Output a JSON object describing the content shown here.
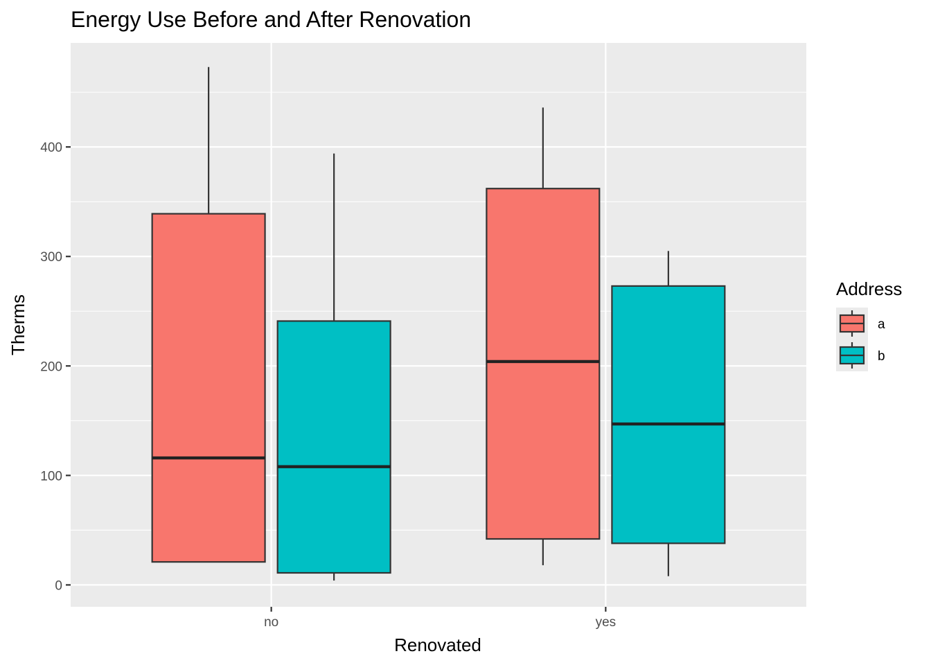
{
  "chart_data": {
    "type": "boxplot",
    "title": "Energy Use Before and After Renovation",
    "xlabel": "Renovated",
    "ylabel": "Therms",
    "categories": [
      "no",
      "yes"
    ],
    "ylim": [
      -20,
      495
    ],
    "yticks": [
      0,
      100,
      200,
      300,
      400
    ],
    "grid": true,
    "legend": {
      "title": "Address",
      "position": "right"
    },
    "series": [
      {
        "name": "a",
        "color": "#F8766D",
        "boxes": [
          {
            "category": "no",
            "min": 21,
            "q1": 21,
            "median": 116,
            "q3": 339,
            "max": 473
          },
          {
            "category": "yes",
            "min": 18,
            "q1": 42,
            "median": 204,
            "q3": 362,
            "max": 436
          }
        ]
      },
      {
        "name": "b",
        "color": "#00BFC4",
        "boxes": [
          {
            "category": "no",
            "min": 4,
            "q1": 11,
            "median": 108,
            "q3": 241,
            "max": 394
          },
          {
            "category": "yes",
            "min": 8,
            "q1": 38,
            "median": 147,
            "q3": 273,
            "max": 305
          }
        ]
      }
    ]
  }
}
